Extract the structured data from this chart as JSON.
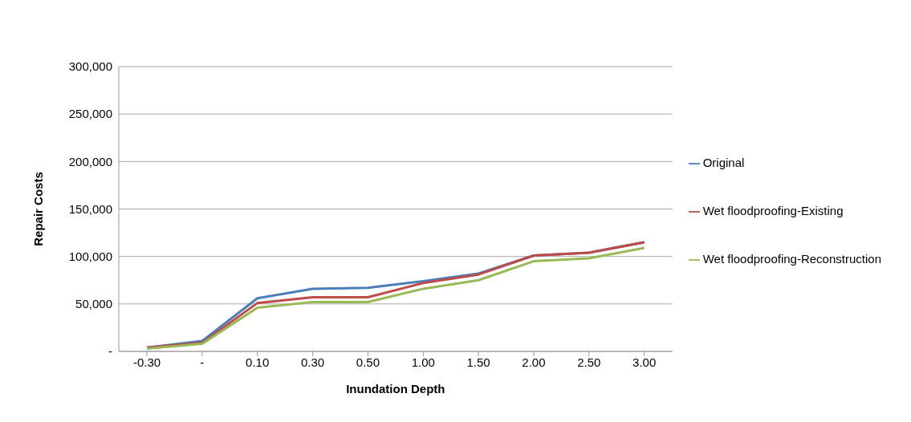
{
  "chart_data": {
    "type": "line",
    "xlabel": "Inundation Depth",
    "ylabel": "Repair Costs",
    "categories": [
      "-0.30",
      "-",
      "0.10",
      "0.30",
      "0.50",
      "1.00",
      "1.50",
      "2.00",
      "2.50",
      "3.00"
    ],
    "series": [
      {
        "name": "Original",
        "color": "#4a7ebb",
        "values": [
          4000,
          11000,
          56000,
          66000,
          67000,
          74000,
          82000,
          101000,
          104000,
          115000
        ]
      },
      {
        "name": "Wet floodproofing-Existing",
        "color": "#be4b48",
        "values": [
          4000,
          9000,
          51000,
          57000,
          57000,
          72000,
          81000,
          101000,
          104000,
          115000
        ]
      },
      {
        "name": "Wet floodproofing-Reconstruction",
        "color": "#98b954",
        "values": [
          3000,
          8000,
          46000,
          52000,
          52000,
          66000,
          75000,
          95000,
          98000,
          109000
        ]
      }
    ],
    "ylim": [
      0,
      300000
    ],
    "yticks": [
      {
        "value": 0,
        "label": "-"
      },
      {
        "value": 50000,
        "label": "50,000"
      },
      {
        "value": 100000,
        "label": "100,000"
      },
      {
        "value": 150000,
        "label": "150,000"
      },
      {
        "value": 200000,
        "label": "200,000"
      },
      {
        "value": 250000,
        "label": "250,000"
      },
      {
        "value": 300000,
        "label": "300,000"
      }
    ],
    "grid": "y",
    "legend": "right",
    "marker": "none",
    "line_style": "solid"
  }
}
